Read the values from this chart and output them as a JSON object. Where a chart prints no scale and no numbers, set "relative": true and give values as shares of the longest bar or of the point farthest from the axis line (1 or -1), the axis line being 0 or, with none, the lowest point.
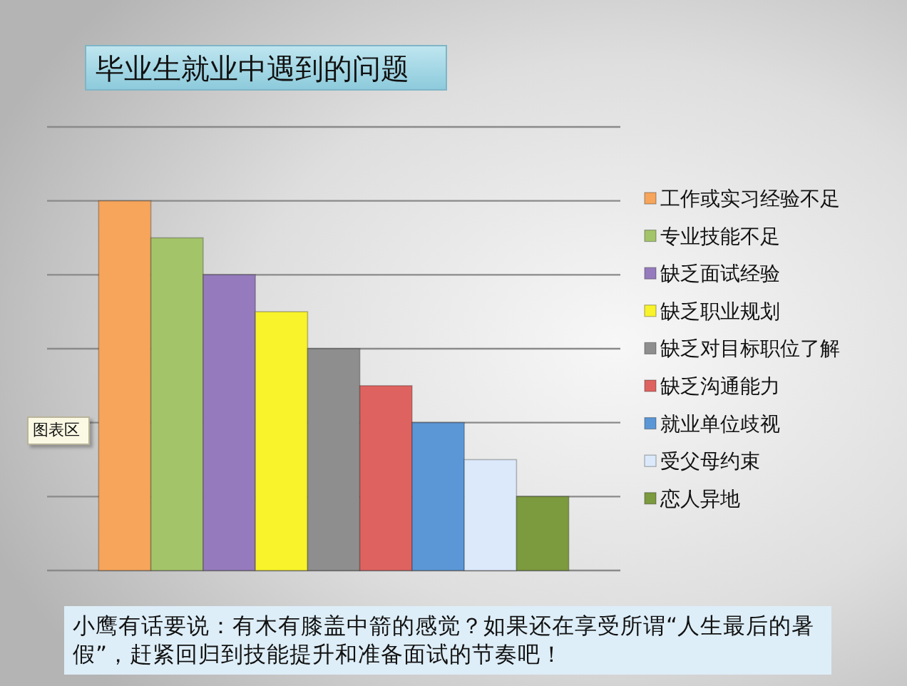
{
  "chart_data": {
    "type": "bar",
    "title": "毕业生就业中遇到的问题",
    "categories": [
      null
    ],
    "relative": true,
    "grid": "y",
    "legend": "right",
    "series": [
      {
        "name": "工作或实习经验不足",
        "color": "#f6a55b",
        "values": [
          1
        ]
      },
      {
        "name": "专业技能不足",
        "color": "#a4c46a",
        "values": [
          0.9
        ]
      },
      {
        "name": "缺乏面试经验",
        "color": "#957bbd",
        "values": [
          0.8
        ]
      },
      {
        "name": "缺乏职业规划",
        "color": "#f8f32b",
        "values": [
          0.7
        ]
      },
      {
        "name": "缺乏对目标职位了解",
        "color": "#8e8e8e",
        "values": [
          0.6
        ]
      },
      {
        "name": "缺乏沟通能力",
        "color": "#de6360",
        "values": [
          0.5
        ]
      },
      {
        "name": "就业单位歧视",
        "color": "#5b97d6",
        "values": [
          0.4
        ]
      },
      {
        "name": "受父母约束",
        "color": "#dbe9fa",
        "values": [
          0.3
        ]
      },
      {
        "name": "恋人异地",
        "color": "#7c9a3e",
        "values": [
          0.2
        ]
      }
    ],
    "annotations": [
      "图表区",
      "小鹰有话要说：有木有膝盖中箭的感觉？如果还在享受所谓“人生最后的暑假”，赶紧回归到技能提升和准备面试的节奏吧！"
    ]
  }
}
